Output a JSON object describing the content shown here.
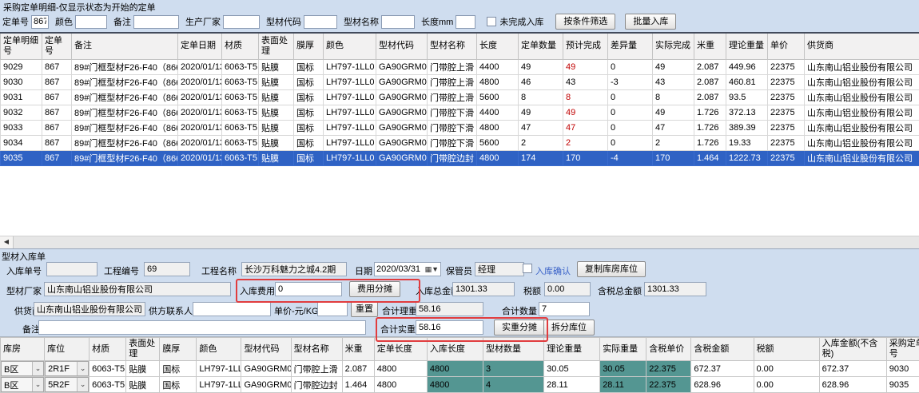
{
  "colors": {
    "selected_row": "#2f62c4",
    "highlight_cell": "#549692",
    "annotation_red": "#e13c3e",
    "confirm_blue": "#3a62c8"
  },
  "icons": {
    "dropdown": "⌄",
    "date_dropdown": "▦▼",
    "scroll_left": "◀"
  },
  "header": {
    "title": "采购定单明细-仅显示状态为开始的定单"
  },
  "filter_bar": {
    "fields": [
      {
        "label": "定单号",
        "value": "867"
      },
      {
        "label": "颜色",
        "value": ""
      },
      {
        "label": "备注",
        "value": ""
      },
      {
        "label": "生产厂家",
        "value": ""
      },
      {
        "label": "型材代码",
        "value": ""
      },
      {
        "label": "型材名称",
        "value": ""
      },
      {
        "label": "长度mm",
        "value": ""
      }
    ],
    "unfinished_checkbox_label": "未完成入库",
    "filter_button": "按条件筛选",
    "batch_button": "批量入库"
  },
  "orders_table": {
    "headers": [
      "定单明细号",
      "定单号",
      "备注",
      "定单日期",
      "材质",
      "表面处理",
      "膜厚",
      "颜色",
      "型材代码",
      "型材名称",
      "长度",
      "定单数量",
      "预计完成",
      "差异量",
      "实际完成",
      "米重",
      "理论重量",
      "单价",
      "供货商"
    ],
    "selected_row_index": 6,
    "rows": [
      {
        "cells": [
          "9029",
          "867",
          "89#门框型材F26-F40（866+867）",
          "2020/01/13",
          "6063-T5",
          "贴膜",
          "国标",
          "LH797-1LL0",
          "GA90GRM03",
          "门带腔上滑",
          "4400",
          "49",
          "49",
          "0",
          "49",
          "2.087",
          "449.96",
          "22375",
          "山东南山铝业股份有限公司"
        ],
        "red_cols": [
          12
        ]
      },
      {
        "cells": [
          "9030",
          "867",
          "89#门框型材F26-F40（866+867）",
          "2020/01/13",
          "6063-T5",
          "贴膜",
          "国标",
          "LH797-1LL0",
          "GA90GRM03",
          "门带腔上滑",
          "4800",
          "46",
          "43",
          "-3",
          "43",
          "2.087",
          "460.81",
          "22375",
          "山东南山铝业股份有限公司"
        ],
        "red_cols": []
      },
      {
        "cells": [
          "9031",
          "867",
          "89#门框型材F26-F40（866+867）",
          "2020/01/13",
          "6063-T5",
          "贴膜",
          "国标",
          "LH797-1LL0",
          "GA90GRM03",
          "门带腔上滑",
          "5600",
          "8",
          "8",
          "0",
          "8",
          "2.087",
          "93.5",
          "22375",
          "山东南山铝业股份有限公司"
        ],
        "red_cols": [
          12
        ]
      },
      {
        "cells": [
          "9032",
          "867",
          "89#门框型材F26-F40（866+867）",
          "2020/01/13",
          "6063-T5",
          "贴膜",
          "国标",
          "LH797-1LL0",
          "GA90GRM04",
          "门带腔下滑",
          "4400",
          "49",
          "49",
          "0",
          "49",
          "1.726",
          "372.13",
          "22375",
          "山东南山铝业股份有限公司"
        ],
        "red_cols": [
          12
        ]
      },
      {
        "cells": [
          "9033",
          "867",
          "89#门框型材F26-F40（866+867）",
          "2020/01/13",
          "6063-T5",
          "贴膜",
          "国标",
          "LH797-1LL0",
          "GA90GRM04",
          "门带腔下滑",
          "4800",
          "47",
          "47",
          "0",
          "47",
          "1.726",
          "389.39",
          "22375",
          "山东南山铝业股份有限公司"
        ],
        "red_cols": [
          12
        ]
      },
      {
        "cells": [
          "9034",
          "867",
          "89#门框型材F26-F40（866+867）",
          "2020/01/13",
          "6063-T5",
          "贴膜",
          "国标",
          "LH797-1LL0",
          "GA90GRM04",
          "门带腔下滑",
          "5600",
          "2",
          "2",
          "0",
          "2",
          "1.726",
          "19.33",
          "22375",
          "山东南山铝业股份有限公司"
        ],
        "red_cols": [
          12
        ]
      },
      {
        "cells": [
          "9035",
          "867",
          "89#门框型材F26-F40（866+867）",
          "2020/01/13",
          "6063-T5",
          "贴膜",
          "国标",
          "LH797-1LL0",
          "GA90GRM05",
          "门带腔边封",
          "4800",
          "174",
          "170",
          "-4",
          "170",
          "1.464",
          "1222.73",
          "22375",
          "山东南山铝业股份有限公司"
        ],
        "red_cols": []
      }
    ]
  },
  "inbound_form": {
    "section_title": "型材入库单",
    "receipt_no_label": "入库单号",
    "receipt_no_value": "",
    "project_no_label": "工程编号",
    "project_no_value": "69",
    "project_name_label": "工程名称",
    "project_name_value": "长沙万科魅力之城4.2期",
    "date_label": "日期",
    "date_value": "2020/03/31",
    "keeper_label": "保管员",
    "keeper_value": "经理",
    "confirm_label": "入库确认",
    "copy_location_button": "复制库房库位",
    "factory_label": "型材厂家",
    "factory_value": "山东南山铝业股份有限公司",
    "fee_label": "入库费用",
    "fee_value": "0",
    "fee_share_button": "费用分摊",
    "total_amount_label": "入库总金额",
    "total_amount_value": "1301.33",
    "tax_label": "税额",
    "tax_value": "0.00",
    "tax_total_label": "含税总金额",
    "tax_total_value": "1301.33",
    "supplier_label": "供货商",
    "supplier_value": "山东南山铝业股份有限公司",
    "contact_label": "供方联系人",
    "contact_value": "",
    "unit_price_label": "单价-元/KG",
    "unit_price_value": "",
    "reset_button": "重置",
    "theory_weight_label": "合计理重",
    "theory_weight_value": "58.16",
    "total_qty_label": "合计数量",
    "total_qty_value": "7",
    "remark_label": "备注",
    "remark_value": "",
    "actual_weight_label": "合计实重",
    "actual_weight_value": "58.16",
    "weight_share_button": "实重分摊",
    "split_location_button": "拆分库位"
  },
  "entry_table": {
    "headers": [
      "库房",
      "库位",
      "材质",
      "表面处理",
      "膜厚",
      "颜色",
      "型材代码",
      "型材名称",
      "米重",
      "定单长度",
      "入库长度",
      "型材数量",
      "理论重量",
      "实际重量",
      "含税单价",
      "含税金额",
      "税额",
      "入库金额(不含税)",
      "采购定单行号"
    ],
    "teal_columns": [
      10,
      11,
      13,
      14
    ],
    "combo_columns": [
      0,
      1
    ],
    "rows": [
      {
        "cells": [
          "B区",
          "2R1F",
          "6063-T5",
          "贴膜",
          "国标",
          "LH797-1LL0",
          "GA90GRM03",
          "门带腔上滑",
          "2.087",
          "4800",
          "4800",
          "3",
          "30.05",
          "30.05",
          "22.375",
          "672.37",
          "0.00",
          "672.37",
          "9030"
        ]
      },
      {
        "cells": [
          "B区",
          "5R2F",
          "6063-T5",
          "贴膜",
          "国标",
          "LH797-1LL0",
          "GA90GRM05",
          "门带腔边封",
          "1.464",
          "4800",
          "4800",
          "4",
          "28.11",
          "28.11",
          "22.375",
          "628.96",
          "0.00",
          "628.96",
          "9035"
        ]
      }
    ]
  }
}
